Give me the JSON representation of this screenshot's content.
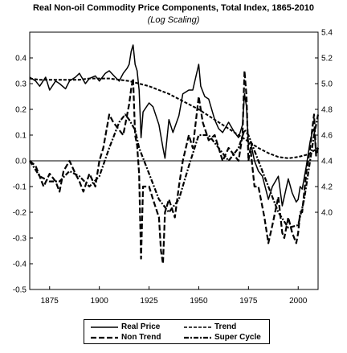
{
  "chart_data": {
    "type": "line",
    "title": "Real Non-oil Commodity Price Components, Total Index, 1865-2010",
    "subtitle": "(Log Scaling)",
    "x_range": [
      1865,
      2010
    ],
    "x_ticks": [
      1875,
      1900,
      1925,
      1950,
      1975,
      2000
    ],
    "left_axis": {
      "range": [
        -0.5,
        0.5
      ],
      "ticks": [
        -0.5,
        -0.4,
        -0.3,
        -0.2,
        -0.1,
        0.0,
        0.1,
        0.2,
        0.3,
        0.4
      ]
    },
    "right_axis": {
      "range": [
        3.4,
        5.4
      ],
      "ticks": [
        4.0,
        4.2,
        4.4,
        4.6,
        4.8,
        5.0,
        5.2,
        5.4
      ]
    },
    "zero_line": 0.0,
    "series": [
      {
        "name": "Real Price",
        "axis": "right",
        "style": "solid",
        "x": [
          1865,
          1868,
          1870,
          1873,
          1875,
          1878,
          1880,
          1883,
          1885,
          1888,
          1890,
          1893,
          1895,
          1898,
          1900,
          1903,
          1905,
          1908,
          1910,
          1912,
          1914,
          1915,
          1916,
          1917,
          1918,
          1919,
          1920,
          1921,
          1922,
          1925,
          1927,
          1930,
          1932,
          1933,
          1935,
          1937,
          1940,
          1942,
          1945,
          1947,
          1950,
          1951,
          1953,
          1955,
          1958,
          1960,
          1962,
          1965,
          1968,
          1970,
          1972,
          1973,
          1974,
          1975,
          1976,
          1978,
          1980,
          1982,
          1983,
          1985,
          1987,
          1990,
          1992,
          1993,
          1995,
          1997,
          1999,
          2000,
          2001,
          2002,
          2004,
          2006,
          2007,
          2008,
          2009,
          2010
        ],
        "y": [
          5.05,
          5.02,
          4.98,
          5.05,
          4.95,
          5.02,
          5.0,
          4.96,
          5.02,
          5.05,
          5.08,
          5.0,
          5.04,
          5.06,
          5.02,
          5.08,
          5.1,
          5.05,
          5.02,
          5.08,
          5.12,
          5.15,
          5.25,
          5.3,
          5.15,
          5.1,
          4.95,
          4.58,
          4.78,
          4.85,
          4.82,
          4.68,
          4.5,
          4.42,
          4.72,
          4.62,
          4.75,
          4.92,
          4.95,
          4.95,
          5.15,
          4.98,
          4.9,
          4.88,
          4.72,
          4.65,
          4.62,
          4.7,
          4.62,
          4.58,
          4.68,
          4.92,
          4.82,
          4.52,
          4.55,
          4.4,
          4.32,
          4.28,
          4.22,
          4.1,
          4.2,
          4.28,
          4.05,
          4.12,
          4.26,
          4.15,
          4.08,
          4.1,
          4.2,
          4.18,
          4.35,
          4.55,
          4.62,
          4.65,
          4.45,
          4.5
        ]
      },
      {
        "name": "Trend",
        "axis": "right",
        "style": "dashed",
        "x": [
          1865,
          1870,
          1875,
          1880,
          1885,
          1890,
          1895,
          1900,
          1905,
          1910,
          1915,
          1920,
          1925,
          1930,
          1935,
          1940,
          1945,
          1950,
          1955,
          1960,
          1965,
          1970,
          1975,
          1980,
          1985,
          1990,
          1995,
          2000,
          2005,
          2010
        ],
        "y": [
          5.04,
          5.03,
          5.03,
          5.03,
          5.03,
          5.03,
          5.04,
          5.04,
          5.04,
          5.03,
          5.02,
          5.0,
          4.98,
          4.95,
          4.92,
          4.88,
          4.84,
          4.8,
          4.75,
          4.7,
          4.65,
          4.6,
          4.55,
          4.5,
          4.46,
          4.43,
          4.42,
          4.43,
          4.45,
          4.5
        ]
      },
      {
        "name": "Non Trend",
        "axis": "left",
        "style": "long-dash",
        "x": [
          1865,
          1868,
          1870,
          1872,
          1875,
          1878,
          1880,
          1882,
          1885,
          1888,
          1890,
          1892,
          1895,
          1898,
          1900,
          1902,
          1905,
          1907,
          1910,
          1912,
          1915,
          1916,
          1917,
          1918,
          1919,
          1920,
          1921,
          1922,
          1925,
          1927,
          1930,
          1931,
          1932,
          1933,
          1935,
          1938,
          1940,
          1942,
          1945,
          1947,
          1950,
          1952,
          1955,
          1958,
          1960,
          1962,
          1965,
          1968,
          1970,
          1972,
          1973,
          1974,
          1975,
          1976,
          1978,
          1980,
          1982,
          1983,
          1985,
          1987,
          1990,
          1992,
          1993,
          1995,
          1997,
          1999,
          2000,
          2001,
          2002,
          2004,
          2006,
          2007,
          2008,
          2009,
          2010
        ],
        "y": [
          0.0,
          -0.02,
          -0.06,
          -0.1,
          -0.05,
          -0.08,
          -0.12,
          -0.04,
          0.0,
          -0.05,
          -0.08,
          -0.12,
          -0.05,
          -0.1,
          0.0,
          0.05,
          0.18,
          0.15,
          0.12,
          0.1,
          0.22,
          0.28,
          0.32,
          0.1,
          0.06,
          -0.05,
          -0.38,
          -0.1,
          -0.1,
          -0.15,
          -0.22,
          -0.35,
          -0.4,
          -0.2,
          -0.15,
          -0.22,
          -0.1,
          0.0,
          0.1,
          0.05,
          0.25,
          0.15,
          0.08,
          0.1,
          0.05,
          0.0,
          0.05,
          0.02,
          0.0,
          0.1,
          0.35,
          0.25,
          0.0,
          0.05,
          -0.1,
          -0.1,
          -0.18,
          -0.22,
          -0.32,
          -0.25,
          -0.14,
          -0.28,
          -0.3,
          -0.22,
          -0.28,
          -0.32,
          -0.28,
          -0.2,
          -0.2,
          -0.05,
          0.05,
          0.12,
          0.18,
          0.02,
          0.05
        ]
      },
      {
        "name": "Super Cycle",
        "axis": "left",
        "style": "dash-dot",
        "x": [
          1865,
          1870,
          1875,
          1880,
          1885,
          1890,
          1895,
          1900,
          1905,
          1910,
          1913,
          1915,
          1918,
          1920,
          1925,
          1930,
          1935,
          1940,
          1945,
          1950,
          1955,
          1960,
          1965,
          1970,
          1973,
          1975,
          1980,
          1985,
          1990,
          1995,
          2000,
          2003,
          2005,
          2008,
          2010
        ],
        "y": [
          0.0,
          -0.06,
          -0.08,
          -0.08,
          -0.04,
          -0.06,
          -0.1,
          -0.06,
          0.05,
          0.15,
          0.18,
          0.16,
          0.12,
          0.05,
          -0.05,
          -0.15,
          -0.2,
          -0.15,
          -0.02,
          0.1,
          0.1,
          0.05,
          0.0,
          0.05,
          0.12,
          0.1,
          0.0,
          -0.1,
          -0.2,
          -0.26,
          -0.25,
          -0.15,
          -0.05,
          0.1,
          0.18
        ]
      }
    ],
    "legend": {
      "position": "bottom",
      "items": [
        {
          "label": "Real Price",
          "style": "solid"
        },
        {
          "label": "Trend",
          "style": "dashed"
        },
        {
          "label": "Non Trend",
          "style": "long-dash"
        },
        {
          "label": "Super Cycle",
          "style": "dash-dot"
        }
      ]
    }
  }
}
